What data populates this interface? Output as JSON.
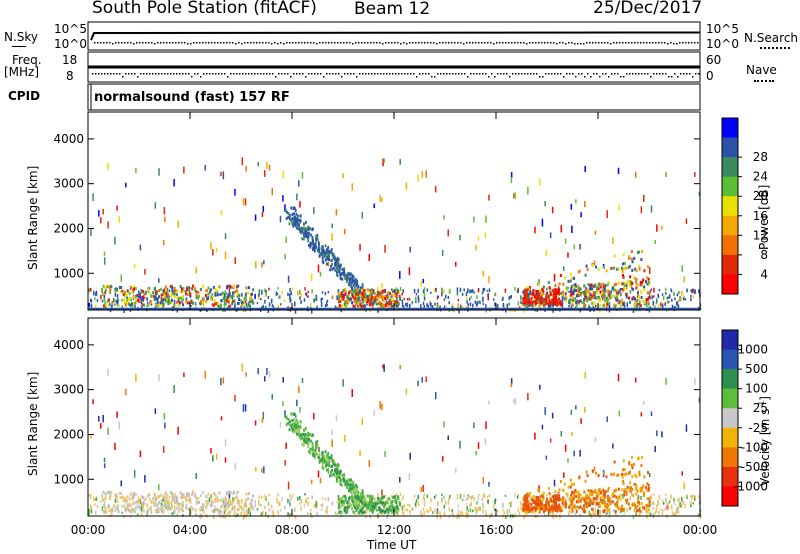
{
  "header": {
    "station": "South Pole Station (fitACF)",
    "beam": "Beam 12",
    "date": "25/Dec/2017"
  },
  "panel_labels": {
    "nsky": "N.Sky",
    "nsky_tick_hi": "10^5",
    "nsky_tick_lo": "10^0",
    "nsearch": "N.Search",
    "nsearch_tick_hi": "10^5",
    "nsearch_tick_lo": "10^0",
    "freq": "Freq.",
    "freq_unit": "[MHz]",
    "freq_tick_hi": "18",
    "freq_tick_lo": "8",
    "nave": "Nave",
    "nave_tick_hi": "60",
    "nave_tick_lo": "0",
    "cpid": "CPID",
    "cpid_text": "normalsound (fast) 157 RF"
  },
  "chart_data": [
    {
      "type": "heatmap",
      "title": "",
      "ylabel": "Slant Range [km]",
      "xlabel": "",
      "ylim": [
        180,
        4600
      ],
      "yticks": [
        "1000",
        "2000",
        "3000",
        "4000"
      ],
      "xticks": [],
      "colorbar": {
        "label": "Power [dB]",
        "ticks": [
          "4",
          "8",
          "12",
          "16",
          "20",
          "24",
          "28"
        ],
        "colors": [
          "#0000ff",
          "#2a53a8",
          "#3a8a5e",
          "#5bbf35",
          "#e8e000",
          "#f5a800",
          "#f07000",
          "#e02a0a",
          "#ff0000"
        ]
      },
      "features": [
        {
          "label": "clusters 00:00-06:00",
          "range_km": [
            200,
            800
          ]
        },
        {
          "label": "descending streak 08:00-11:00",
          "range_km": [
            400,
            2400
          ]
        },
        {
          "label": "clusters 17:00-22:00",
          "range_km": [
            300,
            1700
          ]
        }
      ]
    },
    {
      "type": "heatmap",
      "title": "",
      "ylabel": "Slant Range [km]",
      "xlabel": "Time UT",
      "ylim": [
        180,
        4600
      ],
      "yticks": [
        "1000",
        "2000",
        "3000",
        "4000"
      ],
      "xticks": [
        "00:00",
        "04:00",
        "08:00",
        "12:00",
        "16:00",
        "20:00",
        "00:00"
      ],
      "colorbar": {
        "label": "Velocity [m s-1]",
        "ticks": [
          "1000",
          "500",
          "100",
          "25",
          "-25",
          "-100",
          "-500",
          "-1000"
        ],
        "colors": [
          "#1e2aa8",
          "#2a56b4",
          "#2e8f4e",
          "#5cbf3c",
          "#c8c8c8",
          "#f0b400",
          "#f07800",
          "#e83010",
          "#ff0000"
        ]
      }
    }
  ]
}
